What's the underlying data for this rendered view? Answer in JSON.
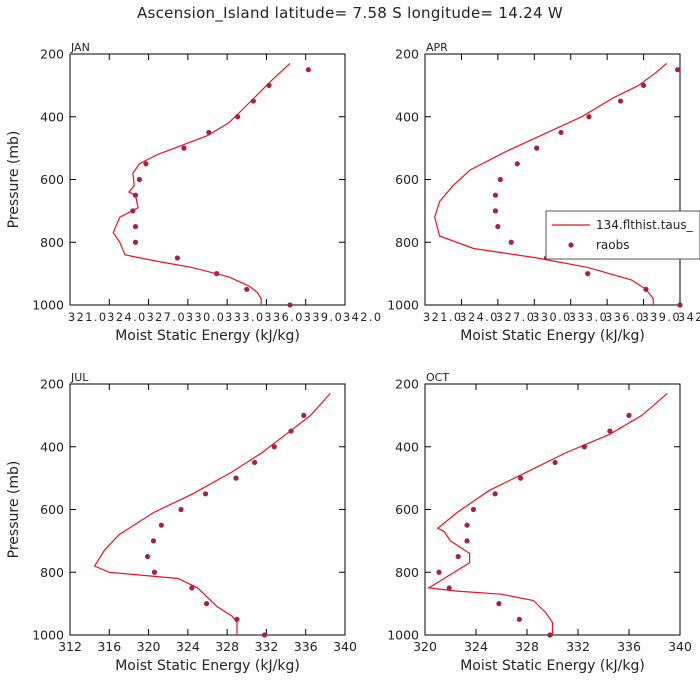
{
  "title": "Ascension_Island  latitude= 7.58 S longitude= 14.24 W",
  "colors": {
    "model": "#e8141e",
    "obs": "#a0234e",
    "axis": "#000000"
  },
  "legend": {
    "model_label": "134.flthist.taus_",
    "obs_label": "raobs"
  },
  "chart_data": [
    {
      "type": "line",
      "panel": "JAN",
      "xlabel": "Moist Static Energy (kJ/kg)",
      "ylabel": "Pressure (mb)",
      "xlim": [
        321.0,
        342.0
      ],
      "ylim": [
        1000,
        200
      ],
      "xticks": [
        321.0,
        324.0,
        327.0,
        330.0,
        333.0,
        336.0,
        339.0,
        342.0
      ],
      "xticklabels": [
        "321.0",
        "324.0",
        "327.0",
        "330.0",
        "333.0",
        "336.0",
        "339.0",
        "342.0"
      ],
      "yticks": [
        200,
        400,
        600,
        800,
        1000
      ],
      "series": [
        {
          "points": [
            [
              337.8,
              230
            ],
            [
              336.5,
              280
            ],
            [
              335.3,
              330
            ],
            [
              334.1,
              380
            ],
            [
              333.1,
              420
            ],
            [
              331.5,
              460
            ],
            [
              329.0,
              500
            ],
            [
              327.7,
              520
            ],
            [
              326.3,
              550
            ],
            [
              325.8,
              580
            ],
            [
              325.9,
              620
            ],
            [
              325.5,
              640
            ],
            [
              326.0,
              650
            ],
            [
              326.2,
              690
            ],
            [
              324.8,
              720
            ],
            [
              324.3,
              770
            ],
            [
              324.8,
              800
            ],
            [
              325.2,
              840
            ],
            [
              327.6,
              860
            ],
            [
              330.3,
              880
            ],
            [
              333.1,
              910
            ],
            [
              334.7,
              940
            ],
            [
              335.3,
              960
            ],
            [
              335.6,
              980
            ],
            [
              335.6,
              1000
            ]
          ]
        },
        {
          "points": [
            [
              339.2,
              250
            ],
            [
              336.2,
              300
            ],
            [
              335.0,
              350
            ],
            [
              333.8,
              400
            ],
            [
              331.6,
              450
            ],
            [
              329.7,
              500
            ],
            [
              326.8,
              550
            ],
            [
              326.3,
              600
            ],
            [
              326.0,
              650
            ],
            [
              325.8,
              700
            ],
            [
              326.0,
              750
            ],
            [
              326.0,
              800
            ],
            [
              329.2,
              850
            ],
            [
              332.2,
              900
            ],
            [
              334.5,
              950
            ],
            [
              337.8,
              1000
            ]
          ]
        }
      ]
    },
    {
      "type": "line",
      "panel": "APR",
      "xlabel": "Moist Static Energy (kJ/kg)",
      "ylabel": "",
      "xlim": [
        321.0,
        342.0
      ],
      "ylim": [
        1000,
        200
      ],
      "xticks": [
        321.0,
        324.0,
        327.0,
        330.0,
        333.0,
        336.0,
        339.0,
        342.0
      ],
      "xticklabels": [
        "321.0",
        "324.0",
        "327.0",
        "330.0",
        "333.0",
        "336.0",
        "339.0",
        "342.0"
      ],
      "yticks": [
        200,
        400,
        600,
        800,
        1000
      ],
      "series": [
        {
          "points": [
            [
              340.9,
              230
            ],
            [
              340.0,
              260
            ],
            [
              338.6,
              300
            ],
            [
              336.5,
              340
            ],
            [
              333.9,
              400
            ],
            [
              331.1,
              450
            ],
            [
              327.7,
              510
            ],
            [
              324.7,
              570
            ],
            [
              323.3,
              620
            ],
            [
              322.2,
              670
            ],
            [
              321.8,
              720
            ],
            [
              322.2,
              780
            ],
            [
              325.0,
              820
            ],
            [
              330.2,
              850
            ],
            [
              334.4,
              880
            ],
            [
              338.0,
              920
            ],
            [
              339.2,
              950
            ],
            [
              339.8,
              980
            ],
            [
              339.8,
              1000
            ]
          ]
        },
        {
          "points": [
            [
              341.8,
              250
            ],
            [
              339.0,
              300
            ],
            [
              337.1,
              350
            ],
            [
              334.5,
              400
            ],
            [
              332.2,
              450
            ],
            [
              330.2,
              500
            ],
            [
              328.6,
              550
            ],
            [
              327.2,
              600
            ],
            [
              326.8,
              650
            ],
            [
              326.8,
              700
            ],
            [
              327.0,
              750
            ],
            [
              328.1,
              800
            ],
            [
              331.0,
              850
            ],
            [
              334.4,
              900
            ],
            [
              339.2,
              950
            ],
            [
              342.0,
              1000
            ]
          ]
        }
      ]
    },
    {
      "type": "line",
      "panel": "JUL",
      "xlabel": "Moist Static Energy (kJ/kg)",
      "ylabel": "Pressure (mb)",
      "xlim": [
        312,
        340
      ],
      "ylim": [
        1000,
        200
      ],
      "xticks": [
        312,
        316,
        320,
        324,
        328,
        332,
        336,
        340
      ],
      "xticklabels": [
        "312",
        "316",
        "320",
        "324",
        "328",
        "332",
        "336",
        "340"
      ],
      "yticks": [
        200,
        400,
        600,
        800,
        1000
      ],
      "series": [
        {
          "points": [
            [
              338.5,
              230
            ],
            [
              336.5,
              300
            ],
            [
              334.0,
              360
            ],
            [
              331.5,
              420
            ],
            [
              328.5,
              480
            ],
            [
              324.5,
              550
            ],
            [
              320.5,
              610
            ],
            [
              317.0,
              680
            ],
            [
              315.5,
              730
            ],
            [
              314.5,
              780
            ],
            [
              316.0,
              800
            ],
            [
              319.5,
              810
            ],
            [
              323.0,
              820
            ],
            [
              325.0,
              850
            ],
            [
              326.0,
              880
            ],
            [
              327.0,
              910
            ],
            [
              328.5,
              940
            ],
            [
              329.0,
              960
            ],
            [
              329.0,
              1000
            ]
          ]
        },
        {
          "points": [
            [
              335.8,
              300
            ],
            [
              334.5,
              350
            ],
            [
              332.8,
              400
            ],
            [
              330.8,
              450
            ],
            [
              328.9,
              500
            ],
            [
              325.8,
              550
            ],
            [
              323.3,
              600
            ],
            [
              321.3,
              650
            ],
            [
              320.5,
              700
            ],
            [
              319.9,
              750
            ],
            [
              320.6,
              800
            ],
            [
              324.4,
              850
            ],
            [
              325.9,
              900
            ],
            [
              329.0,
              950
            ],
            [
              331.8,
              1000
            ]
          ]
        }
      ]
    },
    {
      "type": "line",
      "panel": "OCT",
      "xlabel": "Moist Static Energy (kJ/kg)",
      "ylabel": "",
      "xlim": [
        320,
        340
      ],
      "ylim": [
        1000,
        200
      ],
      "xticks": [
        320,
        324,
        328,
        332,
        336,
        340
      ],
      "xticklabels": [
        "320",
        "324",
        "328",
        "332",
        "336",
        "340"
      ],
      "yticks": [
        200,
        400,
        600,
        800,
        1000
      ],
      "series": [
        {
          "points": [
            [
              339.0,
              230
            ],
            [
              337.0,
              300
            ],
            [
              334.5,
              360
            ],
            [
              331.0,
              420
            ],
            [
              328.0,
              480
            ],
            [
              325.0,
              540
            ],
            [
              322.5,
              610
            ],
            [
              321.0,
              660
            ],
            [
              321.5,
              670
            ],
            [
              322.0,
              700
            ],
            [
              323.5,
              740
            ],
            [
              323.5,
              770
            ],
            [
              321.5,
              820
            ],
            [
              320.3,
              850
            ],
            [
              322.5,
              860
            ],
            [
              326.0,
              870
            ],
            [
              328.5,
              890
            ],
            [
              329.5,
              930
            ],
            [
              330.0,
              960
            ],
            [
              330.0,
              1000
            ]
          ]
        },
        {
          "points": [
            [
              336.0,
              300
            ],
            [
              334.5,
              350
            ],
            [
              332.5,
              400
            ],
            [
              330.2,
              450
            ],
            [
              327.5,
              500
            ],
            [
              325.5,
              550
            ],
            [
              323.8,
              600
            ],
            [
              323.3,
              650
            ],
            [
              323.3,
              700
            ],
            [
              322.6,
              750
            ],
            [
              321.1,
              800
            ],
            [
              321.9,
              850
            ],
            [
              325.8,
              900
            ],
            [
              327.4,
              950
            ],
            [
              329.8,
              1000
            ]
          ]
        }
      ]
    }
  ]
}
